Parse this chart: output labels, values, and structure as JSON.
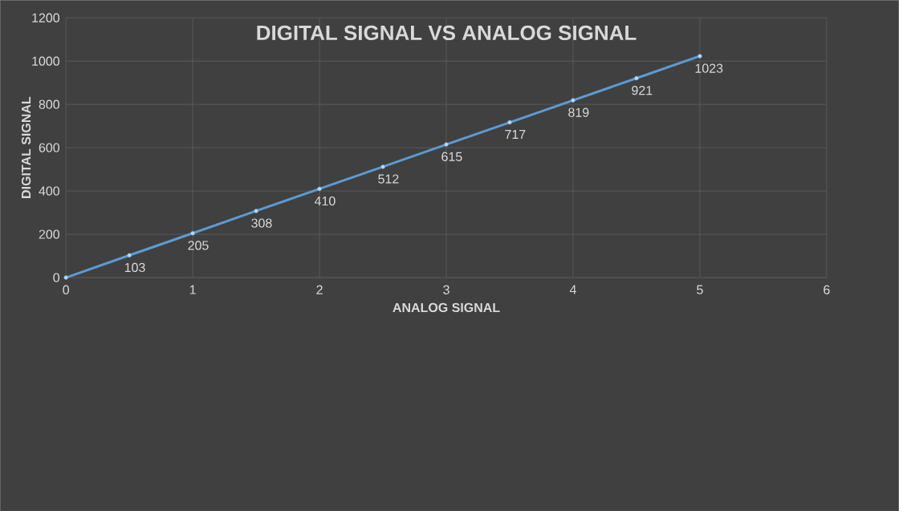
{
  "chart_data": {
    "type": "line",
    "title": "DIGITAL SIGNAL VS ANALOG SIGNAL",
    "xlabel": "ANALOG SIGNAL",
    "ylabel": "DIGITAL SIGNAL",
    "x": [
      0,
      0.5,
      1,
      1.5,
      2,
      2.5,
      3,
      3.5,
      4,
      4.5,
      5
    ],
    "values": [
      0,
      103,
      205,
      308,
      410,
      512,
      615,
      717,
      819,
      921,
      1023
    ],
    "value_labels": [
      null,
      "103",
      "205",
      "308",
      "410",
      "512",
      "615",
      "717",
      "819",
      "921",
      "1023"
    ],
    "color": "#5b9bd5",
    "marker": "circle",
    "grid": true,
    "xlim": [
      0,
      6
    ],
    "ylim": [
      0,
      1200
    ],
    "xticks": [
      0,
      1,
      2,
      3,
      4,
      5,
      6
    ],
    "yticks": [
      0,
      200,
      400,
      600,
      800,
      1000,
      1200
    ]
  }
}
